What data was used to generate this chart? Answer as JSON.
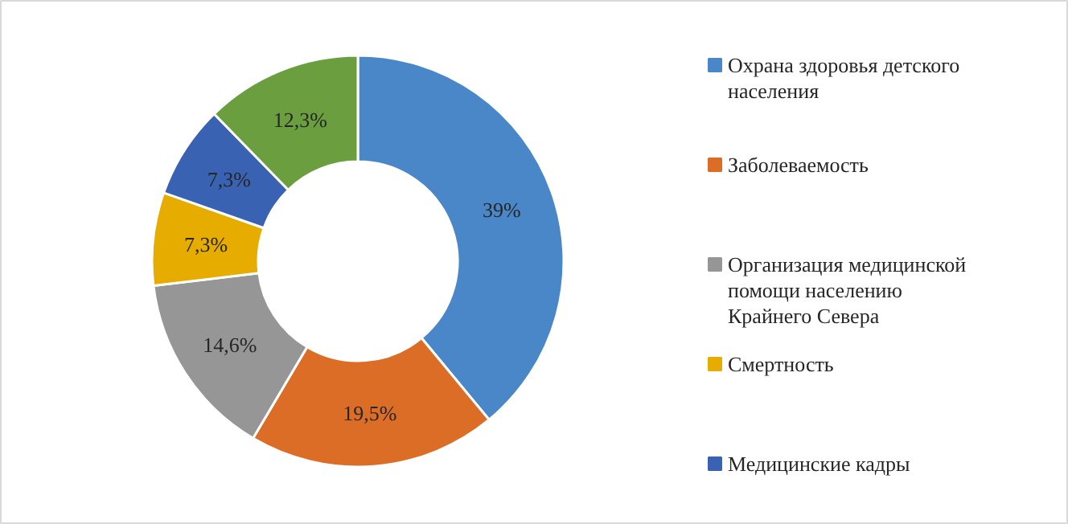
{
  "chart_data": {
    "type": "donut",
    "categories": [
      "Охрана здоровья детского населения",
      "Заболеваемость",
      "Организация медицинской помощи населению Крайнего Севера",
      "Смертность",
      "Медицинские кадры",
      null
    ],
    "values": [
      39,
      19.5,
      14.6,
      7.3,
      7.3,
      12.3
    ],
    "value_labels": [
      "39%",
      "19,5%",
      "14,6%",
      "7,3%",
      "7,3%",
      "12,3%"
    ],
    "colors": [
      "#4a87c8",
      "#dc6d27",
      "#969696",
      "#e6ac00",
      "#3a62b3",
      "#6a9e3f"
    ],
    "legend": "right"
  }
}
